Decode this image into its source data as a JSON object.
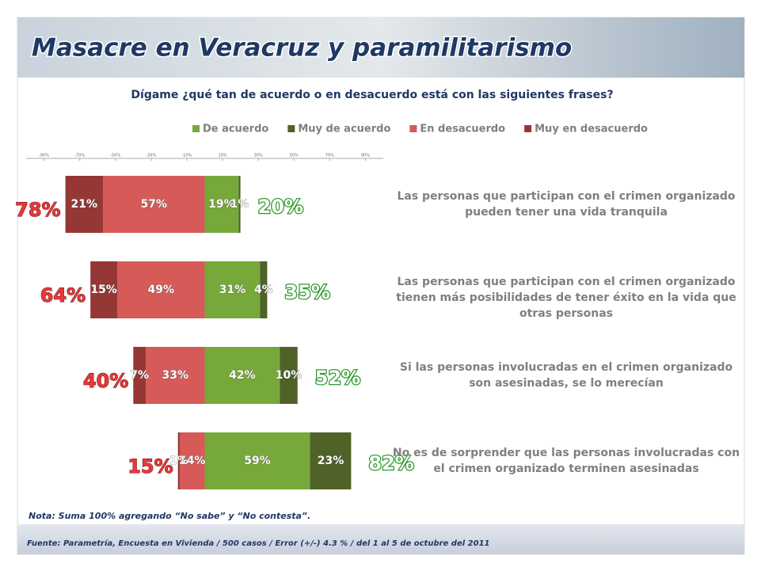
{
  "chart_data": {
    "type": "diverging-bar",
    "title": "Masacre en Veracruz y paramilitarismo",
    "subtitle": "Dígame ¿qué tan de acuerdo o en desacuerdo está con las siguientes frases?",
    "categories": [
      "Las personas que participan con el crimen organizado pueden tener una vida tranquila",
      "Las personas que participan con el crimen organizado tienen más posibilidades de tener éxito en la vida que otras personas",
      "Si las personas involucradas en el crimen organizado son asesinadas, se lo merecían",
      "No es de sorprender que las personas involucradas con el crimen organizado terminen asesinadas"
    ],
    "series": [
      {
        "name": "De acuerdo",
        "color": "#77a83a",
        "values": [
          19,
          31,
          42,
          59
        ],
        "value_labels": [
          "19%",
          "31%",
          "42%",
          "59%"
        ]
      },
      {
        "name": "Muy de acuerdo",
        "color": "#4f6228",
        "values": [
          1,
          4,
          10,
          23
        ],
        "value_labels": [
          "1%",
          "4%",
          "10%",
          "23%"
        ]
      },
      {
        "name": "En desacuerdo",
        "color": "#d65a58",
        "values": [
          -57,
          -49,
          -33,
          -14
        ],
        "value_labels": [
          "57%",
          "49%",
          "33%",
          "14%"
        ]
      },
      {
        "name": "Muy en desacuerdo",
        "color": "#953735",
        "values": [
          -21,
          -15,
          -7,
          -1
        ],
        "value_labels": [
          "21%",
          "15%",
          "7%",
          "1%"
        ]
      }
    ],
    "totals": {
      "disagree": {
        "values": [
          -78,
          -64,
          -40,
          -15
        ],
        "value_labels": [
          "78%",
          "64%",
          "40%",
          "15%"
        ],
        "color": "#e8383a"
      },
      "agree": {
        "values": [
          20,
          35,
          52,
          82
        ],
        "value_labels": [
          "20%",
          "35%",
          "52%",
          "82%"
        ],
        "color": "#2e9a2e"
      }
    },
    "xlim": [
      -100,
      100
    ],
    "xticks": [
      {
        "value": -90,
        "label": "-90%"
      },
      {
        "value": -70,
        "label": "-70%"
      },
      {
        "value": -50,
        "label": "-50%"
      },
      {
        "value": -30,
        "label": "-30%"
      },
      {
        "value": -10,
        "label": "-10%"
      },
      {
        "value": 10,
        "label": "10%"
      },
      {
        "value": 30,
        "label": "30%"
      },
      {
        "value": 50,
        "label": "50%"
      },
      {
        "value": 70,
        "label": "70%"
      },
      {
        "value": 90,
        "label": "90%"
      }
    ],
    "note": "Nota: Suma 100% agregando “No sabe” y “No contesta”.",
    "source": "Fuente: Parametría, Encuesta en Vivienda / 500 casos / Error (+/-) 4.3 % / del 1 al 5 de octubre del 2011"
  }
}
